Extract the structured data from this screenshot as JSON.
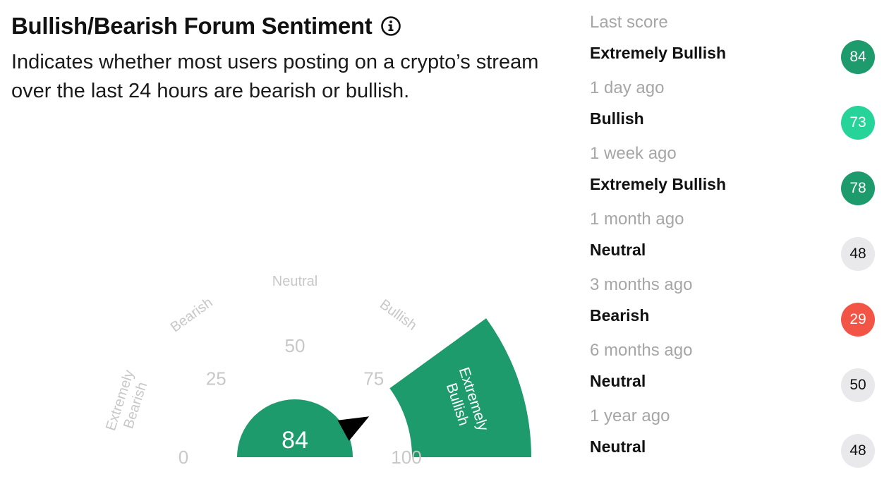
{
  "header": {
    "title": "Bullish/Bearish Forum Sentiment",
    "info_icon": "info-circle-icon",
    "description": "Indicates whether most users posting on a crypto’s stream over the last 24 hours are bearish or bullish."
  },
  "gauge": {
    "value": 84,
    "value_label": "84",
    "min": 0,
    "max": 100,
    "ticks": [
      "0",
      "25",
      "50",
      "75",
      "100"
    ],
    "zones": [
      {
        "key": "extremely_bearish",
        "lines": [
          "Extremely",
          "Bearish"
        ]
      },
      {
        "key": "bearish",
        "lines": [
          "Bearish"
        ]
      },
      {
        "key": "neutral",
        "lines": [
          "Neutral"
        ]
      },
      {
        "key": "bullish",
        "lines": [
          "Bullish"
        ]
      },
      {
        "key": "extremely_bullish",
        "lines": [
          "Extremely",
          "Bullish"
        ]
      }
    ],
    "active_zone": "extremely_bullish",
    "colors": {
      "active": "#1d9b6c",
      "inactive_text": "#c8c8c8",
      "needle": "#000000"
    }
  },
  "history": [
    {
      "when": "Last score",
      "label": "Extremely Bullish",
      "score": "84",
      "badge_color": "#1d9b6c",
      "text_color": "#ffffff"
    },
    {
      "when": "1 day ago",
      "label": "Bullish",
      "score": "73",
      "badge_color": "#26d49a",
      "text_color": "#ffffff"
    },
    {
      "when": "1 week ago",
      "label": "Extremely Bullish",
      "score": "78",
      "badge_color": "#1d9b6c",
      "text_color": "#ffffff"
    },
    {
      "when": "1 month ago",
      "label": "Neutral",
      "score": "48",
      "badge_color": "#e9e9ec",
      "text_color": "#111111"
    },
    {
      "when": "3 months ago",
      "label": "Bearish",
      "score": "29",
      "badge_color": "#f25546",
      "text_color": "#ffffff"
    },
    {
      "when": "6 months ago",
      "label": "Neutral",
      "score": "50",
      "badge_color": "#e9e9ec",
      "text_color": "#111111"
    },
    {
      "when": "1 year ago",
      "label": "Neutral",
      "score": "48",
      "badge_color": "#e9e9ec",
      "text_color": "#111111"
    }
  ]
}
